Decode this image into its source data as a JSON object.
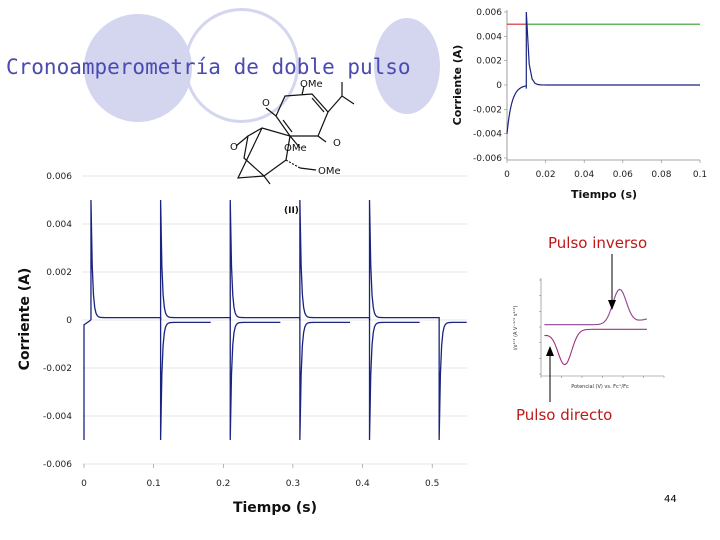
{
  "slide": {
    "title": "Cronoamperometría de doble pulso",
    "page_number": "44",
    "label_reverse": "Pulso inverso",
    "label_direct": "Pulso directo",
    "colors": {
      "title": "#4a4ab0",
      "deco": "#d4d6ef",
      "label": "#c01818",
      "trace": "#1a237e",
      "red": "#d62728",
      "green": "#2ca02c",
      "cv": "#a0307a"
    }
  },
  "molecule": {
    "labels": [
      "OMe",
      "O",
      "O",
      "OMe",
      "OMe",
      "O"
    ],
    "caption": "(II)"
  },
  "chart_data": [
    {
      "id": "main",
      "type": "line",
      "xlabel": "Tiempo (s)",
      "ylabel": "Corriente (A)",
      "xlim": [
        0,
        0.55
      ],
      "ylim": [
        -0.006,
        0.006
      ],
      "xticks": [
        0,
        0.1,
        0.2,
        0.3,
        0.4,
        0.5
      ],
      "xtick_labels": [
        "0",
        "0.1",
        "0.2",
        "0.3",
        "0.4",
        "0.5"
      ],
      "yticks": [
        0.006,
        0.004,
        0.002,
        0,
        -0.002,
        -0.004,
        -0.006
      ],
      "ytick_labels": [
        "0.006",
        "0.004",
        "0.002",
        "0",
        "-0.002",
        "-0.004",
        "-0.006"
      ],
      "series": [
        {
          "style": "double-pulse",
          "period": 0.1,
          "forward_start": 0.01,
          "reverse_start": 0.11,
          "peak_positive": 0.005,
          "peak_negative": -0.005,
          "plateau": 0.0001,
          "decay_tau": 0.0022,
          "count": 5
        }
      ]
    },
    {
      "id": "inset",
      "type": "line",
      "xlabel": "Tiempo (s)",
      "ylabel": "Corriente (A)",
      "xlim": [
        0,
        0.1
      ],
      "ylim": [
        -0.006,
        0.006
      ],
      "xticks": [
        0,
        0.02,
        0.04,
        0.06,
        0.08,
        0.1
      ],
      "xtick_labels": [
        "0",
        "0.02",
        "0.04",
        "0.06",
        "0.08",
        "0.1"
      ],
      "yticks": [
        0.006,
        0.004,
        0.002,
        0,
        -0.002,
        -0.004,
        -0.006
      ],
      "ytick_labels": [
        "0.006",
        "0.004",
        "0.002",
        "0",
        "-0.002",
        "-0.004",
        "-0.006"
      ],
      "series": [
        {
          "style": "step",
          "x": [
            0,
            0.01,
            0.1
          ],
          "y": [
            0.005,
            0.005,
            0.005
          ],
          "segment_colors": [
            "#d62728",
            "#2ca02c"
          ]
        },
        {
          "style": "single-pulse",
          "reverse_start": 0.0,
          "reverse_end": 0.01,
          "forward_start": 0.01,
          "peak_positive": 0.006,
          "peak_negative": -0.004,
          "plateau": 0.0,
          "decay_tau": 0.0012
        }
      ]
    },
    {
      "id": "cv",
      "type": "line",
      "xlabel": "Potencial (V) vs. Fc⁺/Fc",
      "ylabel": "i/ν¹ᐟ² (A V⁻¹ᐟ² s¹ᐟ²)",
      "xlim": [
        -1.2,
        0.6
      ],
      "ylim": [
        -4,
        4
      ],
      "series": [
        {
          "style": "cyclic-voltammogram",
          "e_pa": -0.05,
          "e_pc": -0.85,
          "ip": 3
        }
      ]
    }
  ]
}
